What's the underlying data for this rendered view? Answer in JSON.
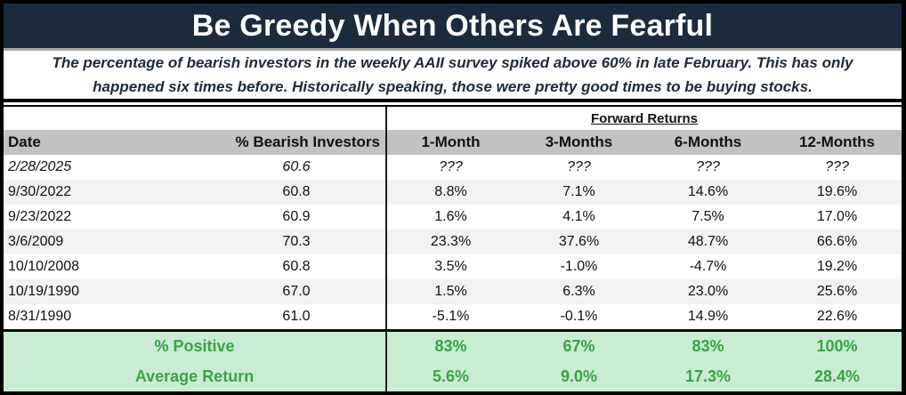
{
  "header": {
    "title": "Be Greedy When Others Are Fearful",
    "subtitle_line1": "The percentage of bearish investors in the weekly AAII survey spiked above 60% in late February. This has only",
    "subtitle_line2": "happened six times before. Historically speaking, those were pretty good times to be buying stocks."
  },
  "chart_data": {
    "type": "table",
    "title": "Be Greedy When Others Are Fearful",
    "group_header": "Forward Returns",
    "columns": [
      "Date",
      "% Bearish Investors",
      "1-Month",
      "3-Months",
      "6-Months",
      "12-Months"
    ],
    "rows": [
      {
        "date": "2/28/2025",
        "bearish": "60.6",
        "returns": [
          "???",
          "???",
          "???",
          "???"
        ]
      },
      {
        "date": "9/30/2022",
        "bearish": "60.8",
        "returns": [
          "8.8%",
          "7.1%",
          "14.6%",
          "19.6%"
        ]
      },
      {
        "date": "9/23/2022",
        "bearish": "60.9",
        "returns": [
          "1.6%",
          "4.1%",
          "7.5%",
          "17.0%"
        ]
      },
      {
        "date": "3/6/2009",
        "bearish": "70.3",
        "returns": [
          "23.3%",
          "37.6%",
          "48.7%",
          "66.6%"
        ]
      },
      {
        "date": "10/10/2008",
        "bearish": "60.8",
        "returns": [
          "3.5%",
          "-1.0%",
          "-4.7%",
          "19.2%"
        ]
      },
      {
        "date": "10/19/1990",
        "bearish": "67.0",
        "returns": [
          "1.5%",
          "6.3%",
          "23.0%",
          "25.6%"
        ]
      },
      {
        "date": "8/31/1990",
        "bearish": "61.0",
        "returns": [
          "-5.1%",
          "-0.1%",
          "14.9%",
          "22.6%"
        ]
      }
    ],
    "summary": [
      {
        "label": "% Positive",
        "values": [
          "83%",
          "67%",
          "83%",
          "100%"
        ]
      },
      {
        "label": "Average Return",
        "values": [
          "5.6%",
          "9.0%",
          "17.3%",
          "28.4%"
        ]
      }
    ]
  },
  "colors": {
    "banner_bg": "#1b2a3c",
    "banner_text": "#ffffff",
    "subtitle_text": "#1e2a38",
    "header_row_bg": "#c2c2c2",
    "row_stripe": "#f2f2f2",
    "summary_bg": "#c9edd3",
    "summary_text": "#3aa243",
    "border": "#000000"
  }
}
